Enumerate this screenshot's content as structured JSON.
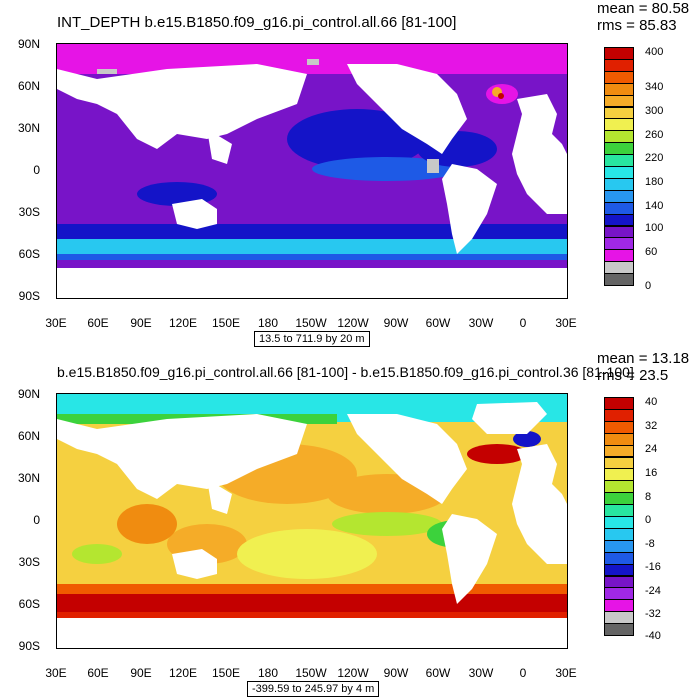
{
  "panels": [
    {
      "title": "INT_DEPTH b.e15.B1850.f09_g16.pi_control.all.66 [81-100]",
      "mean_text": "mean = 80.58",
      "rms_text": "rms = 85.83",
      "range_text": "13.5 to 711.9 by 20 m",
      "lat_labels": [
        "90N",
        "60N",
        "30N",
        "0",
        "30S",
        "60S",
        "90S"
      ],
      "lon_labels": [
        "30E",
        "60E",
        "90E",
        "120E",
        "150E",
        "180",
        "150W",
        "120W",
        "90W",
        "60W",
        "30W",
        "0",
        "30E"
      ],
      "colorbar_labels": [
        "400",
        "340",
        "300",
        "260",
        "220",
        "180",
        "140",
        "100",
        "60",
        "0"
      ],
      "colorbar_colors": [
        "#c40000",
        "#e02000",
        "#f05a00",
        "#f08c10",
        "#f5ac28",
        "#f5d040",
        "#f0f050",
        "#b4e630",
        "#3cd23c",
        "#28e6a0",
        "#28e6e6",
        "#28c8f0",
        "#2896f0",
        "#1e5ae6",
        "#1414c8",
        "#7814c8",
        "#a028e6",
        "#e614e6",
        "#c8c8c8",
        "#646464"
      ]
    },
    {
      "title": "b.e15.B1850.f09_g16.pi_control.all.66 [81-100] - b.e15.B1850.f09_g16.pi_control.36 [81-100]",
      "mean_text": "mean = 13.18",
      "rms_text": "rms = 23.5",
      "range_text": "-399.59 to 245.97 by 4 m",
      "lat_labels": [
        "90N",
        "60N",
        "30N",
        "0",
        "30S",
        "60S",
        "90S"
      ],
      "lon_labels": [
        "30E",
        "60E",
        "90E",
        "120E",
        "150E",
        "180",
        "150W",
        "120W",
        "90W",
        "60W",
        "30W",
        "0",
        "30E"
      ],
      "colorbar_labels": [
        "40",
        "32",
        "24",
        "16",
        "8",
        "0",
        "-8",
        "-16",
        "-24",
        "-32",
        "-40"
      ],
      "colorbar_colors": [
        "#c40000",
        "#e02000",
        "#f05a00",
        "#f08c10",
        "#f5ac28",
        "#f5d040",
        "#f0f050",
        "#b4e630",
        "#3cd23c",
        "#28e6a0",
        "#28e6e6",
        "#28c8f0",
        "#2896f0",
        "#1e5ae6",
        "#1414c8",
        "#7814c8",
        "#a028e6",
        "#e614e6",
        "#c8c8c8",
        "#646464"
      ]
    }
  ]
}
